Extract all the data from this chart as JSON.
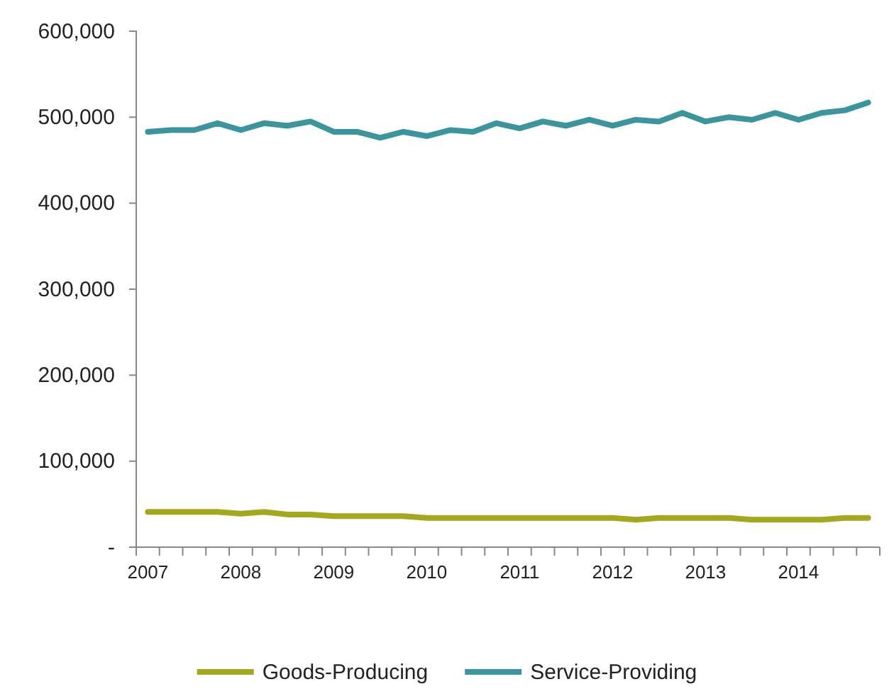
{
  "chart_data": {
    "type": "line",
    "categories": [
      "2007",
      null,
      null,
      null,
      "2008",
      null,
      null,
      null,
      "2009",
      null,
      null,
      null,
      "2010",
      null,
      null,
      null,
      "2011",
      null,
      null,
      null,
      "2012",
      null,
      null,
      null,
      "2013",
      null,
      null,
      null,
      "2014",
      null,
      null,
      null
    ],
    "series": [
      {
        "name": "Goods-Producing",
        "color": "#a3a81c",
        "values": [
          41000,
          41000,
          41000,
          41000,
          39000,
          41000,
          38000,
          38000,
          36000,
          36000,
          36000,
          36000,
          34000,
          34000,
          34000,
          34000,
          34000,
          34000,
          34000,
          34000,
          34000,
          32000,
          34000,
          34000,
          34000,
          34000,
          32000,
          32000,
          32000,
          32000,
          34000,
          34000
        ]
      },
      {
        "name": "Service-Providing",
        "color": "#3a969c",
        "values": [
          483000,
          485000,
          485000,
          493000,
          485000,
          493000,
          490000,
          495000,
          483000,
          483000,
          476000,
          483000,
          478000,
          485000,
          483000,
          493000,
          487000,
          495000,
          490000,
          497000,
          490000,
          497000,
          495000,
          505000,
          495000,
          500000,
          497000,
          505000,
          497000,
          505000,
          508000,
          517000
        ]
      }
    ],
    "ylim": [
      0,
      600000
    ],
    "yticks": [
      {
        "value": 0,
        "label": "-"
      },
      {
        "value": 100000,
        "label": "100,000"
      },
      {
        "value": 200000,
        "label": "200,000"
      },
      {
        "value": 300000,
        "label": "300,000"
      },
      {
        "value": 400000,
        "label": "400,000"
      },
      {
        "value": 500000,
        "label": "500,000"
      },
      {
        "value": 600000,
        "label": "600,000"
      }
    ],
    "legend": "bottom",
    "grid": false,
    "marker": "none",
    "line_style": "solid"
  }
}
